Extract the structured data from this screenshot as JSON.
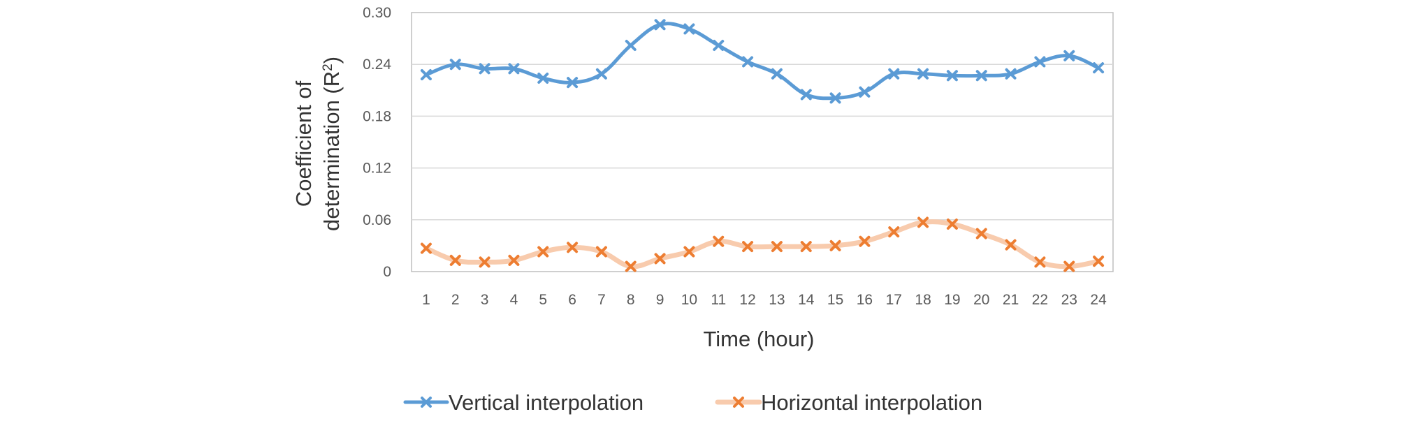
{
  "chart_data": {
    "type": "line",
    "xlabel": "Time (hour)",
    "ylabel_line1": "Coefficient of",
    "ylabel_line2": "determination (R",
    "ylabel_sup": "2",
    "ylabel_close": ")",
    "ylim": [
      0,
      0.3
    ],
    "yticks": [
      "0",
      "0.06",
      "0.12",
      "0.18",
      "0.24",
      "0.30"
    ],
    "ytick_values": [
      0,
      0.06,
      0.12,
      0.18,
      0.24,
      0.3
    ],
    "categories": [
      "1",
      "2",
      "3",
      "4",
      "5",
      "6",
      "7",
      "8",
      "9",
      "10",
      "11",
      "12",
      "13",
      "14",
      "15",
      "16",
      "17",
      "18",
      "19",
      "20",
      "21",
      "22",
      "23",
      "24"
    ],
    "grid": true,
    "legend_position": "bottom",
    "series": [
      {
        "name": "Vertical interpolation",
        "color": "#5b9bd5",
        "marker_color": "#5b9bd5",
        "values": [
          0.228,
          0.24,
          0.235,
          0.235,
          0.224,
          0.219,
          0.229,
          0.262,
          0.286,
          0.281,
          0.262,
          0.243,
          0.229,
          0.205,
          0.201,
          0.208,
          0.229,
          0.229,
          0.227,
          0.227,
          0.229,
          0.243,
          0.25,
          0.236
        ]
      },
      {
        "name": "Horizontal interpolation",
        "color": "#f8cbad",
        "marker_color": "#ed7d31",
        "values": [
          0.027,
          0.013,
          0.011,
          0.013,
          0.023,
          0.028,
          0.023,
          0.006,
          0.015,
          0.023,
          0.035,
          0.029,
          0.029,
          0.029,
          0.03,
          0.035,
          0.046,
          0.057,
          0.055,
          0.044,
          0.031,
          0.011,
          0.006,
          0.012
        ]
      }
    ]
  }
}
